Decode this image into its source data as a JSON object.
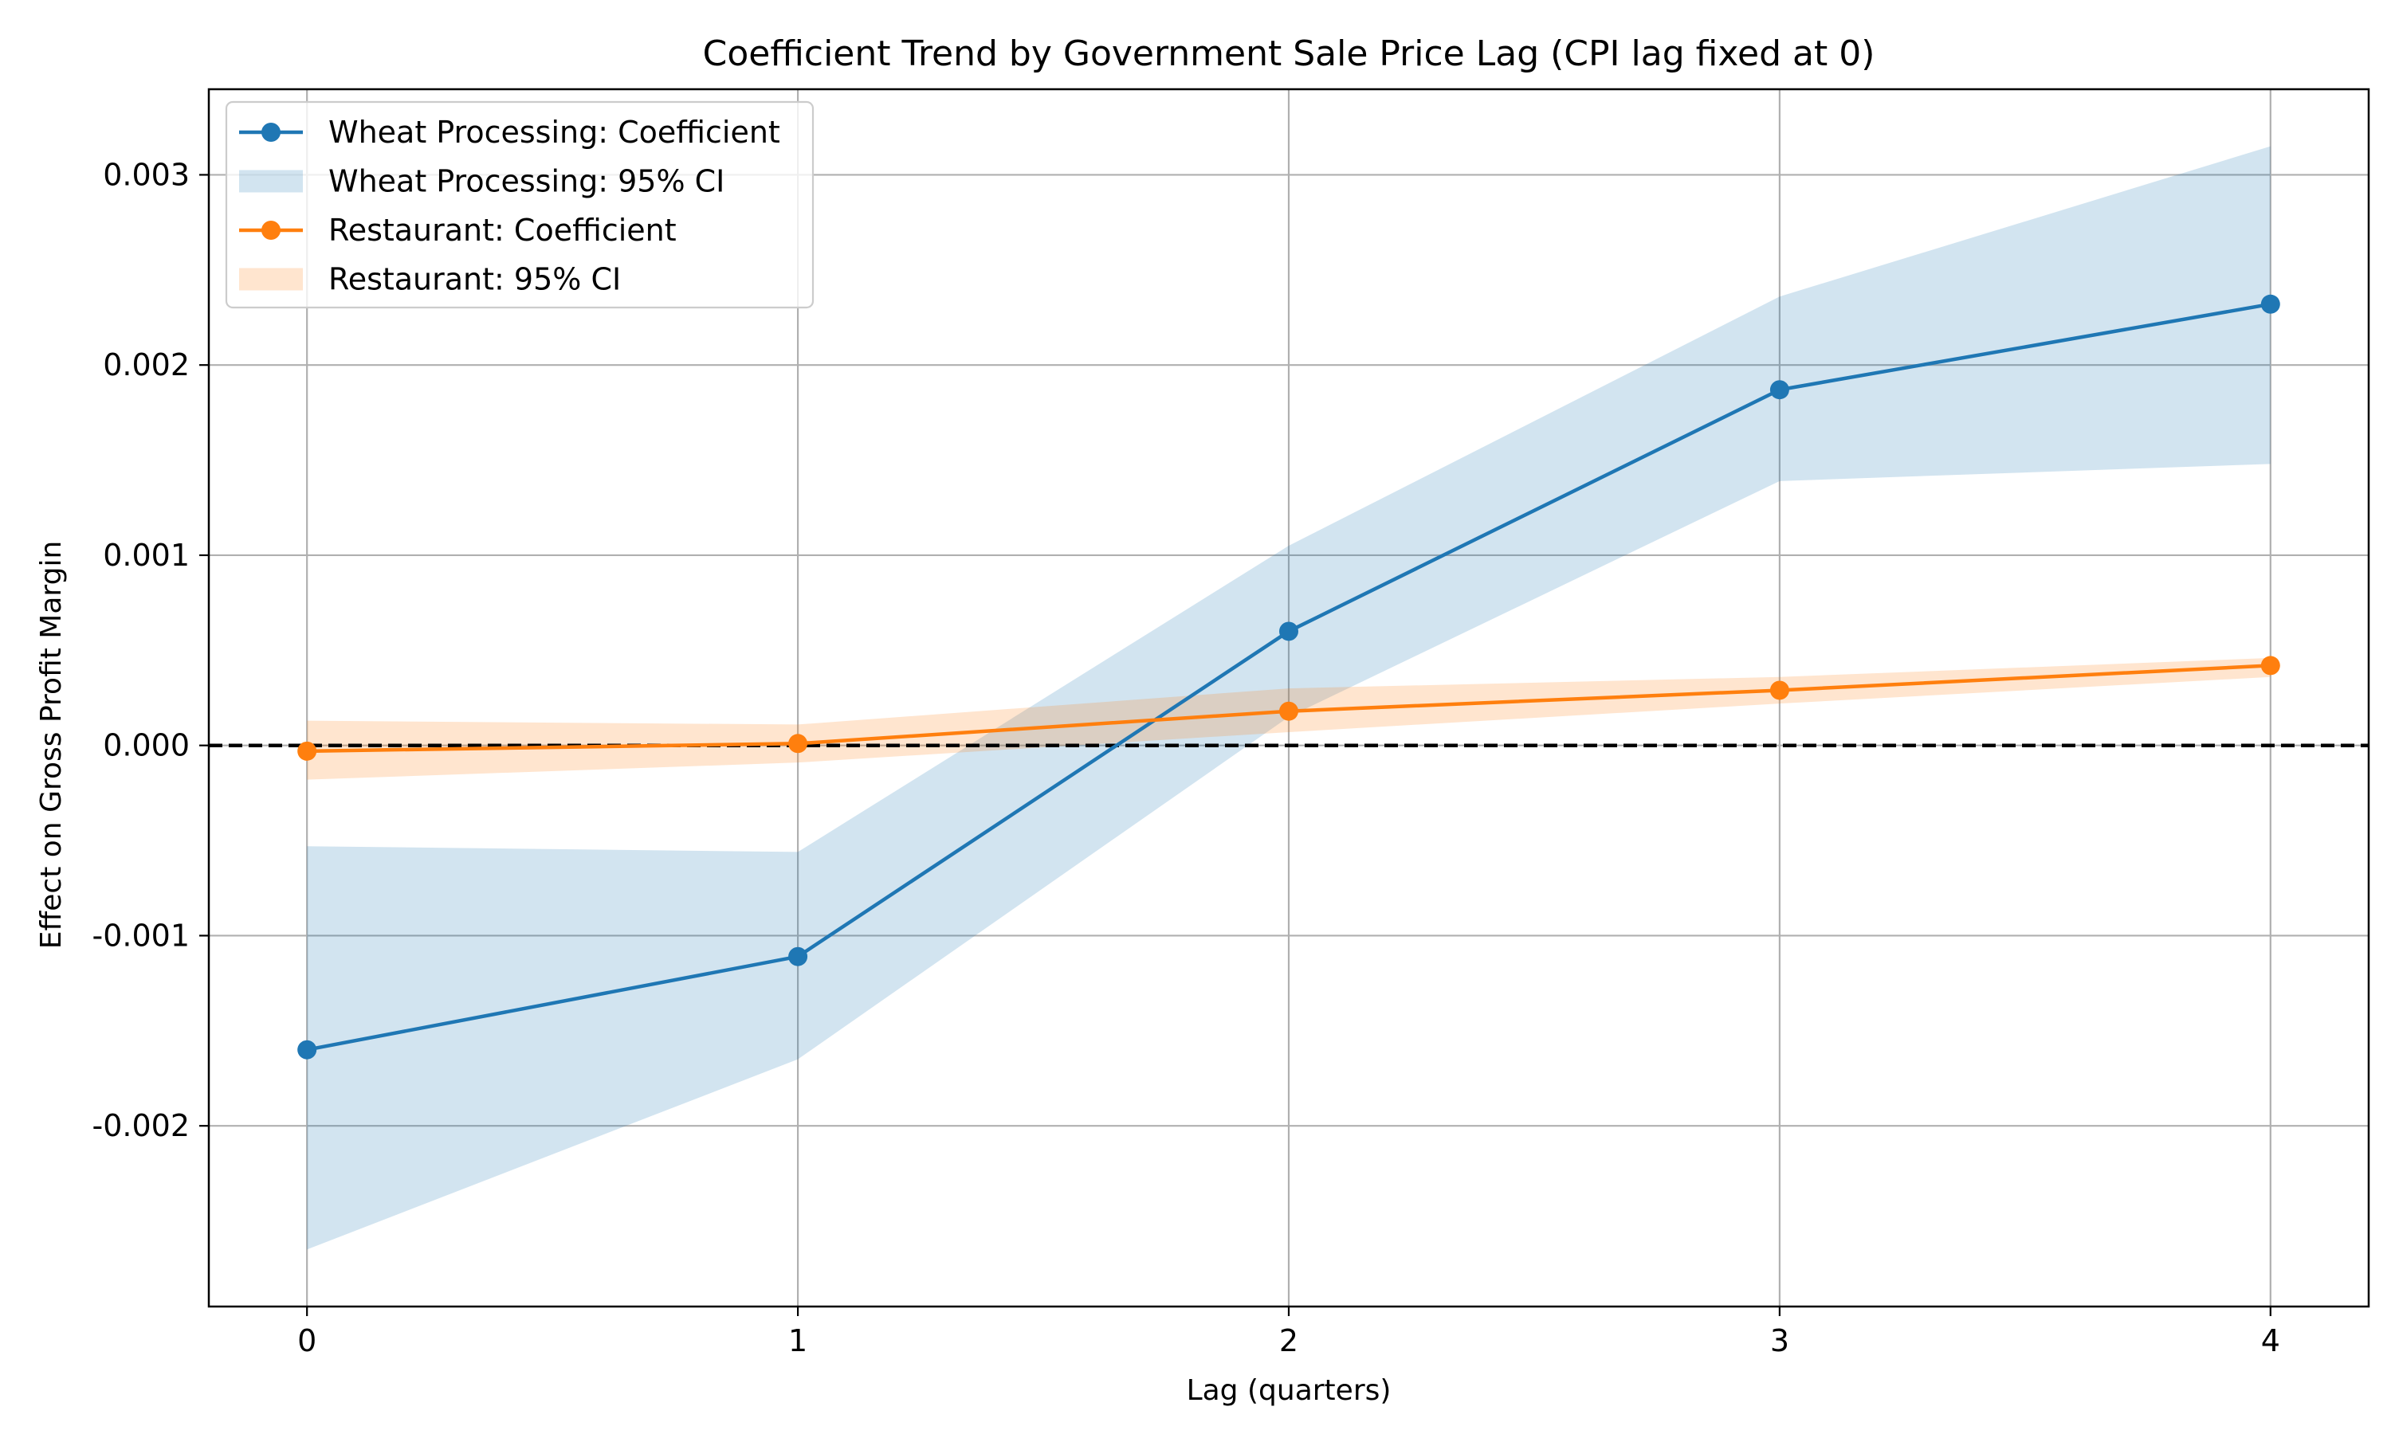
{
  "chart_data": {
    "type": "line",
    "title": "Coefficient Trend by Government Sale Price Lag (CPI lag fixed at 0)",
    "xlabel": "Lag (quarters)",
    "ylabel": "Effect on Gross Profit Margin",
    "x": [
      0,
      1,
      2,
      3,
      4
    ],
    "xlim": [
      -0.2,
      4.2
    ],
    "ylim": [
      -0.00295,
      0.00345
    ],
    "xticks": [
      0,
      1,
      2,
      3,
      4
    ],
    "xtick_labels": [
      "0",
      "1",
      "2",
      "3",
      "4"
    ],
    "yticks": [
      -0.002,
      -0.001,
      0.0,
      0.001,
      0.002,
      0.003
    ],
    "ytick_labels": [
      "-0.002",
      "-0.001",
      "0.000",
      "0.001",
      "0.002",
      "0.003"
    ],
    "grid": true,
    "reference_line": {
      "y": 0,
      "style": "dashed",
      "color": "#000000"
    },
    "legend_position": "top-left",
    "series": [
      {
        "name": "Wheat Processing: Coefficient",
        "ci_name": "Wheat Processing: 95% CI",
        "color": "#1f77b4",
        "ci_color": "#1f77b4",
        "values": [
          -0.0016,
          -0.00111,
          0.0006,
          0.00187,
          0.00232
        ],
        "ci_lower": [
          -0.00265,
          -0.00165,
          0.00015,
          0.00139,
          0.00148
        ],
        "ci_upper": [
          -0.00053,
          -0.00056,
          0.00105,
          0.00236,
          0.00315
        ]
      },
      {
        "name": "Restaurant: Coefficient",
        "ci_name": "Restaurant: 95% CI",
        "color": "#ff7f0e",
        "ci_color": "#ff7f0e",
        "values": [
          -3e-05,
          1e-05,
          0.00018,
          0.00029,
          0.00042
        ],
        "ci_lower": [
          -0.00018,
          -9e-05,
          7e-05,
          0.00022,
          0.00036
        ],
        "ci_upper": [
          0.00013,
          0.00011,
          0.0003,
          0.00036,
          0.00046
        ]
      }
    ]
  }
}
